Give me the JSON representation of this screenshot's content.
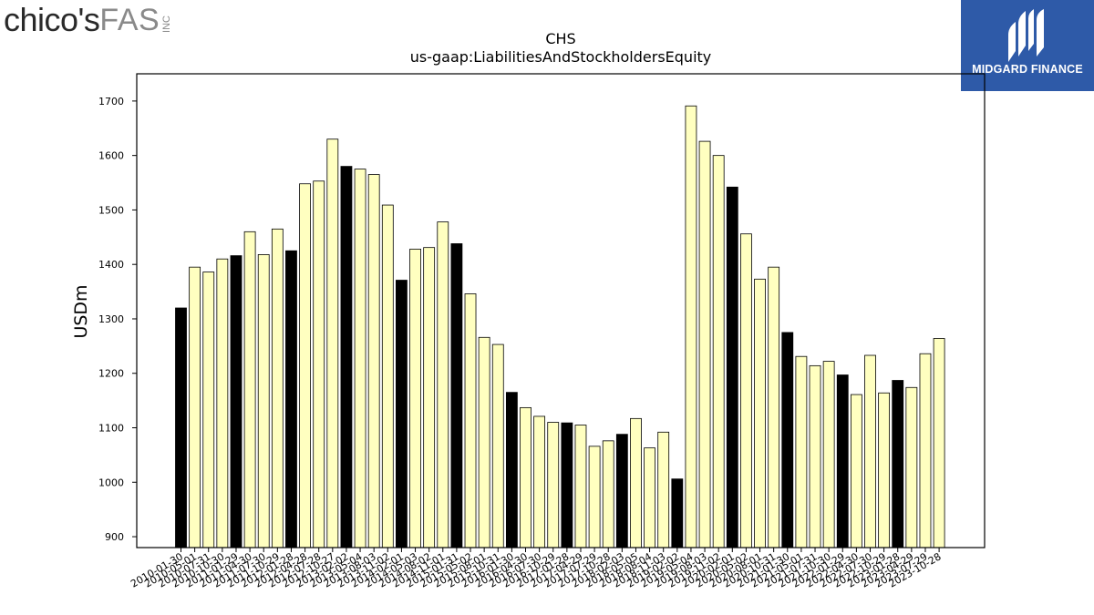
{
  "branding": {
    "left_logo_main": "chico's",
    "left_logo_sub": "FAS",
    "left_logo_inc": "INC",
    "right_logo_text": "MIDGARD FINANCE"
  },
  "chart_data": {
    "type": "bar",
    "title": "CHS",
    "subtitle": "us-gaap:LiabilitiesAndStockholdersEquity",
    "xlabel": "",
    "ylabel": "USDm",
    "ylim": [
      880,
      1750
    ],
    "yticks": [
      900,
      1000,
      1100,
      1200,
      1300,
      1400,
      1500,
      1600,
      1700
    ],
    "grid": false,
    "colors": {
      "highlight": "#000000",
      "normal": "#ffffc0",
      "edge": "#000000"
    },
    "categories": [
      "2010-01-30",
      "2010-05-01",
      "2010-07-31",
      "2010-10-30",
      "2011-01-29",
      "2011-04-30",
      "2011-07-30",
      "2011-10-29",
      "2012-01-28",
      "2012-04-28",
      "2012-07-28",
      "2012-10-27",
      "2013-02-02",
      "2013-05-04",
      "2013-08-03",
      "2013-11-02",
      "2014-02-01",
      "2014-05-03",
      "2014-08-02",
      "2014-11-01",
      "2015-01-31",
      "2015-05-02",
      "2015-08-01",
      "2015-10-31",
      "2016-01-30",
      "2016-04-30",
      "2016-07-30",
      "2016-10-29",
      "2017-01-28",
      "2017-04-29",
      "2017-07-29",
      "2017-10-28",
      "2018-02-03",
      "2018-05-05",
      "2018-08-04",
      "2018-11-03",
      "2019-02-02",
      "2019-05-04",
      "2019-08-03",
      "2019-11-02",
      "2020-02-01",
      "2020-05-02",
      "2020-08-01",
      "2020-10-31",
      "2021-01-30",
      "2021-05-01",
      "2021-07-31",
      "2021-10-30",
      "2022-01-29",
      "2022-04-30",
      "2022-07-30",
      "2022-10-29",
      "2023-01-28",
      "2023-04-29",
      "2023-07-29",
      "2023-10-28"
    ],
    "values": [
      1320,
      1395,
      1386,
      1410,
      1416,
      1460,
      1418,
      1465,
      1425,
      1548,
      1553,
      1630,
      1580,
      1575,
      1565,
      1509,
      1371,
      1428,
      1431,
      1478,
      1438,
      1346,
      1266,
      1253,
      1165,
      1137,
      1121,
      1110,
      1109,
      1105,
      1066,
      1076,
      1088,
      1117,
      1063,
      1092,
      1006,
      1691,
      1626,
      1600,
      1542,
      1456,
      1373,
      1395,
      1275,
      1231,
      1214,
      1222,
      1197,
      1161,
      1233,
      1164,
      1187,
      1174,
      1236,
      1264
    ],
    "highlighted": [
      0,
      4,
      8,
      12,
      16,
      20,
      24,
      28,
      32,
      36,
      40,
      44,
      48,
      52
    ]
  }
}
